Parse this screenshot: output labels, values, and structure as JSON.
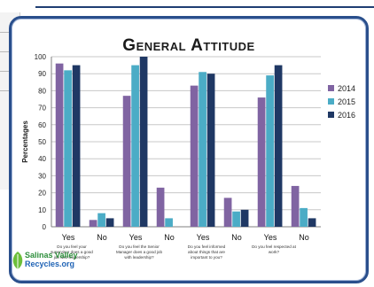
{
  "chart_data": {
    "type": "bar",
    "title": "General Attitude",
    "ylabel": "Percentages",
    "ylim": [
      0,
      100
    ],
    "yticks": [
      0,
      10,
      20,
      30,
      40,
      50,
      60,
      70,
      80,
      90,
      100
    ],
    "legend_position": "right",
    "groups": [
      {
        "label": "Do you feel your supervisor does a good job with leadership?",
        "categories": [
          "Yes",
          "No"
        ]
      },
      {
        "label": "Do you feel the Senior Manager does a good job with leadership?",
        "categories": [
          "Yes",
          "No"
        ]
      },
      {
        "label": "Do you feel informed about things that are important to you?",
        "categories": [
          "Yes",
          "No"
        ]
      },
      {
        "label": "Do you feel respected at work?",
        "categories": [
          "Yes",
          "No"
        ]
      }
    ],
    "categories": [
      "Yes",
      "No",
      "Yes",
      "No",
      "Yes",
      "No",
      "Yes",
      "No"
    ],
    "series": [
      {
        "name": "2014",
        "color": "#8064a2",
        "values": [
          96,
          4,
          77,
          23,
          83,
          17,
          76,
          24
        ]
      },
      {
        "name": "2015",
        "color": "#4bacc6",
        "values": [
          92,
          8,
          95,
          5,
          91,
          9,
          89,
          11
        ]
      },
      {
        "name": "2016",
        "color": "#1f3864",
        "values": [
          95,
          5,
          100,
          0,
          90,
          10,
          95,
          5
        ]
      }
    ]
  },
  "logo": {
    "line1": "Salinas Valley",
    "line2": "Recycles.org"
  }
}
